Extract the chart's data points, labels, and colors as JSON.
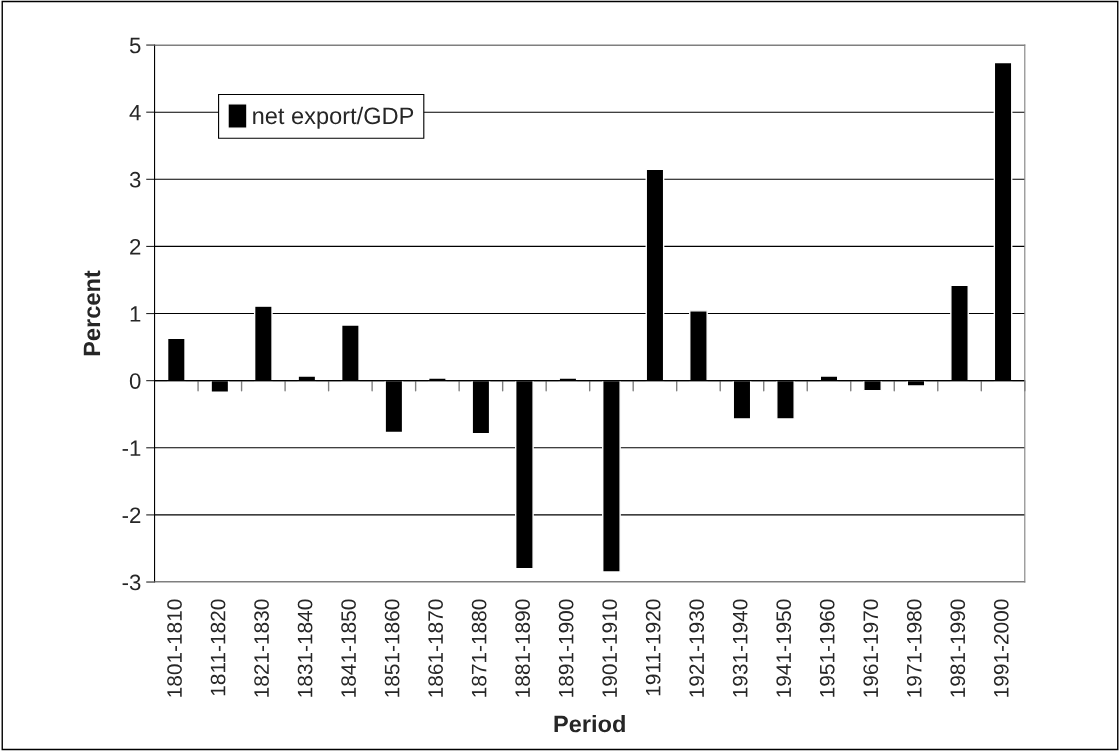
{
  "chart_data": {
    "type": "bar",
    "xlabel": "Period",
    "ylabel": "Percent",
    "categories": [
      "1801-1810",
      "1811-1820",
      "1821-1830",
      "1831-1840",
      "1841-1850",
      "1851-1860",
      "1861-1870",
      "1871-1880",
      "1881-1890",
      "1891-1900",
      "1901-1910",
      "1911-1920",
      "1921-1930",
      "1931-1940",
      "1941-1950",
      "1951-1960",
      "1961-1970",
      "1971-1980",
      "1981-1990",
      "1991-2000"
    ],
    "series": [
      {
        "name": "net export/GDP",
        "color": "#000000",
        "values": [
          0.63,
          -0.17,
          1.11,
          0.07,
          0.83,
          -0.77,
          0.04,
          -0.79,
          -2.8,
          0.04,
          -2.85,
          3.15,
          1.04,
          -0.57,
          -0.57,
          0.07,
          -0.15,
          -0.08,
          1.42,
          4.74
        ]
      }
    ],
    "ylim": [
      -3,
      5
    ],
    "yticks": [
      -3,
      -2,
      -1,
      0,
      1,
      2,
      3,
      4,
      5
    ],
    "grid": "y",
    "legend": "top left"
  }
}
